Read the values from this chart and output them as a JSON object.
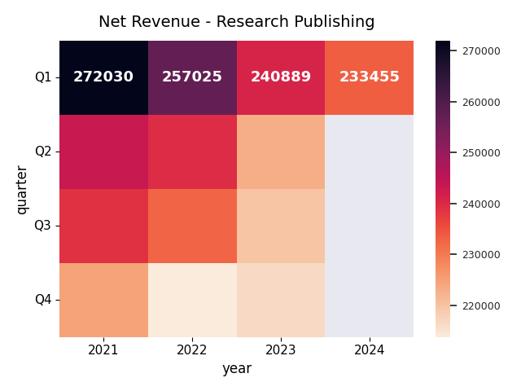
{
  "title": "Net Revenue - Research Publishing",
  "xlabel": "year",
  "ylabel": "quarter",
  "years": [
    2021,
    2022,
    2023,
    2024
  ],
  "quarters": [
    "Q1",
    "Q2",
    "Q3",
    "Q4"
  ],
  "values": [
    [
      272030,
      257025,
      240889,
      233455
    ],
    [
      243284,
      239523,
      223000,
      null
    ],
    [
      238853,
      232641,
      219743,
      null
    ],
    [
      224553,
      213720,
      216586,
      null
    ]
  ],
  "vmin": 213720,
  "vmax": 272030,
  "cmap": "rocket_r",
  "annot_fontsize": 13,
  "title_fontsize": 14
}
